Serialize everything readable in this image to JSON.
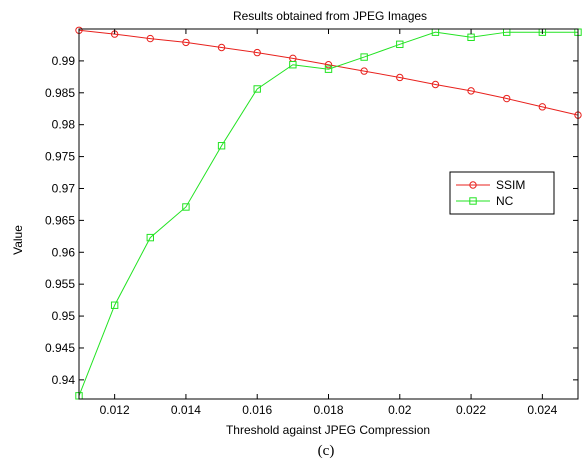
{
  "chart_data": {
    "type": "line",
    "title": "Results obtained from JPEG Images",
    "xlabel": "Threshold against JPEG Compression",
    "ylabel": "Value",
    "caption": "(c)",
    "xlim": [
      0.011,
      0.025
    ],
    "ylim": [
      0.937,
      0.995
    ],
    "xticks": [
      0.012,
      0.014,
      0.016,
      0.018,
      0.02,
      0.022,
      0.024
    ],
    "xtick_labels": [
      "0.012",
      "0.014",
      "0.016",
      "0.018",
      "0.02",
      "0.022",
      "0.024"
    ],
    "yticks": [
      0.94,
      0.945,
      0.95,
      0.955,
      0.96,
      0.965,
      0.97,
      0.975,
      0.98,
      0.985,
      0.99
    ],
    "ytick_labels": [
      "0.94",
      "0.945",
      "0.95",
      "0.955",
      "0.96",
      "0.965",
      "0.97",
      "0.975",
      "0.98",
      "0.985",
      "0.99"
    ],
    "grid": false,
    "legend_position": "right",
    "x": [
      0.011,
      0.012,
      0.013,
      0.014,
      0.015,
      0.016,
      0.017,
      0.018,
      0.019,
      0.02,
      0.021,
      0.022,
      0.023,
      0.024,
      0.025
    ],
    "series": [
      {
        "name": "SSIM",
        "color": "#e8211d",
        "marker": "circle",
        "values": [
          0.9948,
          0.9942,
          0.9935,
          0.9929,
          0.9921,
          0.9913,
          0.9904,
          0.9894,
          0.9884,
          0.9874,
          0.9863,
          0.9853,
          0.9841,
          0.9828,
          0.9815
        ]
      },
      {
        "name": "NC",
        "color": "#22e322",
        "marker": "square",
        "values": [
          0.9375,
          0.9517,
          0.9623,
          0.9671,
          0.9767,
          0.9856,
          0.9894,
          0.9887,
          0.9906,
          0.9926,
          0.9945,
          0.9937,
          0.9945,
          0.9945,
          0.9945
        ]
      }
    ]
  }
}
